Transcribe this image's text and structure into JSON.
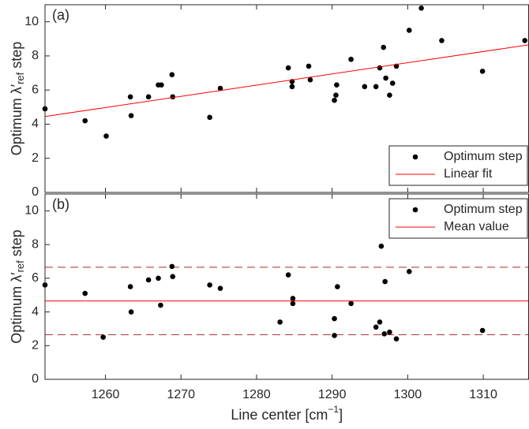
{
  "chart_data": [
    {
      "type": "scatter",
      "panel_label": "(a)",
      "ylabel": [
        "Optimum λ′",
        "ref",
        " step"
      ],
      "xlim": [
        1252,
        1316
      ],
      "xticks": [
        1260,
        1270,
        1280,
        1290,
        1300,
        1310
      ],
      "show_xtick_labels": false,
      "ylim": [
        0,
        11
      ],
      "yticks": [
        0,
        2,
        4,
        6,
        8,
        10
      ],
      "legend": "lower right",
      "series": [
        {
          "name": "Optimum step",
          "color": "#000000",
          "mode": "markers",
          "x": [
            1252.0,
            1257.3,
            1260.1,
            1263.3,
            1263.4,
            1265.7,
            1267.0,
            1267.4,
            1268.8,
            1268.9,
            1273.8,
            1275.2,
            1284.2,
            1284.7,
            1284.7,
            1286.9,
            1287.1,
            1290.3,
            1290.5,
            1290.6,
            1292.5,
            1294.3,
            1295.8,
            1296.3,
            1296.8,
            1297.1,
            1297.6,
            1298.0,
            1298.5,
            1300.2,
            1301.8,
            1304.5,
            1309.9,
            1315.5
          ],
          "values": [
            4.9,
            4.2,
            3.3,
            5.6,
            4.5,
            5.6,
            6.3,
            6.3,
            6.9,
            5.6,
            4.4,
            6.1,
            7.3,
            6.5,
            6.2,
            7.4,
            6.6,
            5.4,
            5.7,
            6.3,
            7.8,
            6.2,
            6.2,
            7.3,
            8.5,
            6.7,
            5.7,
            6.4,
            7.4,
            9.5,
            10.8,
            8.9,
            7.1,
            8.9
          ]
        },
        {
          "name": "Linear fit",
          "color": "#ff0000",
          "mode": "line",
          "x": [
            1252,
            1316
          ],
          "values": [
            4.45,
            8.65
          ]
        }
      ]
    },
    {
      "type": "scatter",
      "panel_label": "(b)",
      "ylabel": [
        "Optimum λ′",
        "ref",
        " step"
      ],
      "xlabel": [
        "Line center [cm",
        "−1",
        "]"
      ],
      "xlim": [
        1252,
        1316
      ],
      "xticks": [
        1260,
        1270,
        1280,
        1290,
        1300,
        1310
      ],
      "show_xtick_labels": true,
      "ylim": [
        0,
        11
      ],
      "yticks": [
        0,
        2,
        4,
        6,
        8,
        10
      ],
      "legend": "upper right",
      "hlines": [
        2.65,
        6.65
      ],
      "hline_color": "#a52a2a",
      "hline_style": "dashed",
      "series": [
        {
          "name": "Optimum step",
          "color": "#000000",
          "mode": "markers",
          "x": [
            1252.0,
            1257.3,
            1259.7,
            1263.3,
            1263.4,
            1265.7,
            1267.0,
            1267.3,
            1268.8,
            1268.9,
            1273.8,
            1275.2,
            1283.1,
            1284.2,
            1284.8,
            1284.8,
            1290.3,
            1290.3,
            1290.7,
            1292.5,
            1295.8,
            1296.3,
            1296.5,
            1296.9,
            1297.0,
            1297.6,
            1298.5,
            1300.2,
            1309.9
          ],
          "values": [
            5.6,
            5.1,
            2.5,
            5.5,
            4.0,
            5.9,
            6.0,
            4.4,
            6.7,
            6.1,
            5.6,
            5.4,
            3.4,
            6.2,
            4.8,
            4.5,
            3.6,
            2.6,
            5.5,
            4.5,
            3.1,
            3.4,
            7.9,
            2.7,
            5.8,
            2.8,
            2.4,
            6.4,
            2.9
          ]
        },
        {
          "name": "Mean value",
          "color": "#ff0000",
          "mode": "line",
          "x": [
            1252,
            1316
          ],
          "values": [
            4.65,
            4.65
          ]
        }
      ]
    }
  ]
}
